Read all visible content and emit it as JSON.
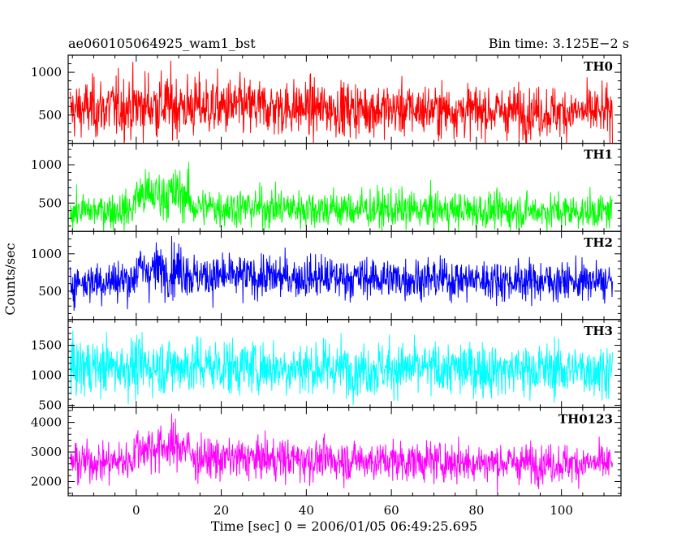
{
  "header": {
    "left": "ae060105064925_wam1_bst",
    "right": "Bin time: 3.125E−2 s"
  },
  "chart_data": {
    "type": "line",
    "title": "ae060105064925_wam1_bst",
    "bin_time": "Bin time: 3.125E−2 s",
    "xlabel": "Time [sec] 0 = 2006/01/05 06:49:25.695",
    "ylabel": "Counts/sec",
    "xlim": [
      -16,
      114
    ],
    "x_ticks": [
      0,
      20,
      40,
      60,
      80,
      100
    ],
    "x_tick_labels": [
      "0",
      "20",
      "40",
      "60",
      "80",
      "100"
    ],
    "data_x_range": [
      -15.5,
      112.0
    ],
    "grid": false,
    "panels": [
      {
        "name": "TH0",
        "color": "#ff0000",
        "ylim": [
          170,
          1200
        ],
        "yticks": [
          500,
          1000
        ],
        "ytick_labels": [
          "500",
          "1000"
        ],
        "segments": [
          [
            -15.5,
            560,
            160
          ],
          [
            5,
            620,
            200
          ],
          [
            12,
            600,
            180
          ],
          [
            40,
            580,
            160
          ],
          [
            70,
            560,
            150
          ],
          [
            90,
            540,
            150
          ],
          [
            112,
            530,
            140
          ]
        ]
      },
      {
        "name": "TH1",
        "color": "#00ff00",
        "ylim": [
          130,
          1280
        ],
        "yticks": [
          500,
          1000
        ],
        "ytick_labels": [
          "500",
          "1000"
        ],
        "segments": [
          [
            -15.5,
            390,
            110
          ],
          [
            -1,
            410,
            120
          ],
          [
            0,
            600,
            160
          ],
          [
            12,
            620,
            170
          ],
          [
            13,
            450,
            130
          ],
          [
            40,
            430,
            130
          ],
          [
            80,
            400,
            120
          ],
          [
            112,
            390,
            110
          ]
        ]
      },
      {
        "name": "TH2",
        "color": "#0000ff",
        "ylim": [
          120,
          1300
        ],
        "yticks": [
          500,
          1000
        ],
        "ytick_labels": [
          "500",
          "1000"
        ],
        "segments": [
          [
            -15.5,
            620,
            140
          ],
          [
            -1,
            650,
            150
          ],
          [
            0,
            780,
            170
          ],
          [
            12,
            800,
            180
          ],
          [
            13,
            700,
            150
          ],
          [
            50,
            680,
            140
          ],
          [
            112,
            620,
            130
          ]
        ]
      },
      {
        "name": "TH3",
        "color": "#00ffff",
        "ylim": [
          460,
          1930
        ],
        "yticks": [
          500,
          1000,
          1500
        ],
        "ytick_labels": [
          "500",
          "1000",
          "1500"
        ],
        "segments": [
          [
            -15.5,
            1130,
            230
          ],
          [
            12,
            1160,
            240
          ],
          [
            40,
            1120,
            230
          ],
          [
            80,
            1100,
            220
          ],
          [
            112,
            1090,
            220
          ]
        ]
      },
      {
        "name": "TH0123",
        "color": "#ff00ff",
        "ylim": [
          1520,
          4500
        ],
        "yticks": [
          2000,
          3000,
          4000
        ],
        "ytick_labels": [
          "2000",
          "3000",
          "4000"
        ],
        "segments": [
          [
            -15.5,
            2650,
            330
          ],
          [
            -1,
            2700,
            340
          ],
          [
            0,
            3150,
            400
          ],
          [
            12,
            3200,
            420
          ],
          [
            13,
            2800,
            360
          ],
          [
            40,
            2750,
            350
          ],
          [
            80,
            2650,
            330
          ],
          [
            112,
            2600,
            320
          ]
        ]
      }
    ]
  }
}
